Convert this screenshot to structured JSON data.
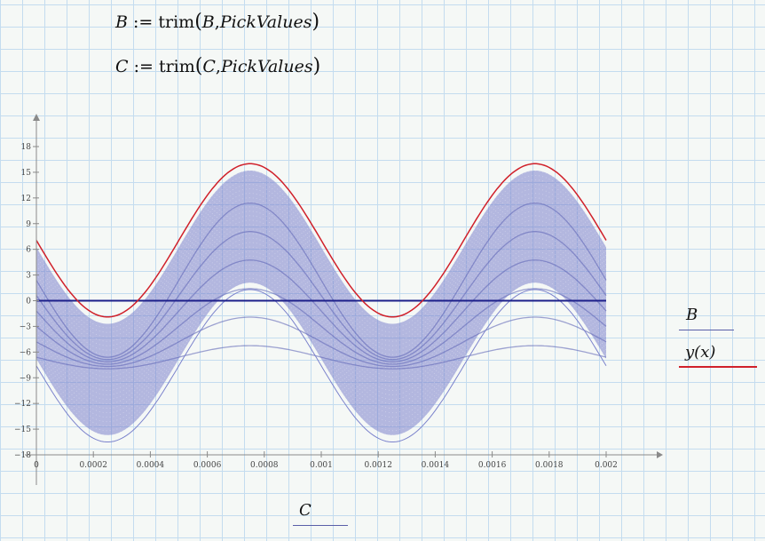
{
  "equations": [
    {
      "lhs": "B",
      "op": ":=",
      "func": "trim",
      "args": [
        "B",
        "PickValues"
      ]
    },
    {
      "lhs": "C",
      "op": ":=",
      "func": "trim",
      "args": [
        "C",
        "PickValues"
      ]
    }
  ],
  "legend": {
    "y_items": [
      {
        "label": "B",
        "color": "#5a5fa8"
      },
      {
        "label": "y(x)",
        "color": "#d0202a"
      }
    ],
    "x_label": "C",
    "x_label_color": "#5a5fa8"
  },
  "colors": {
    "axis": "#8a8a8a",
    "band": "#7b82cc",
    "zero_line": "#1c1f8a",
    "envelope": "#d0202a"
  },
  "chart_data": {
    "type": "line",
    "title": "",
    "xlabel": "C",
    "ylabel": "",
    "xlim": [
      0,
      0.002
    ],
    "ylim": [
      -18,
      18
    ],
    "grid": false,
    "legend_position": "right",
    "x_ticks": [
      "0",
      "0.0002",
      "0.0004",
      "0.0006",
      "0.0008",
      "0.001",
      "0.0012",
      "0.0014",
      "0.0016",
      "0.0018",
      "0.002"
    ],
    "y_ticks": [
      "-18",
      "-15",
      "-12",
      "-9",
      "-6",
      "-3",
      "0",
      "3",
      "6",
      "9",
      "12",
      "15",
      "18"
    ],
    "series": [
      {
        "name": "y(x)",
        "color": "#d0202a",
        "description": "sinusoid, period ~0.001, offset ~6.7, amplitude ~9",
        "x": [
          0,
          0.00025,
          0.0005,
          0.00075,
          0.001,
          0.00125,
          0.0015,
          0.00175,
          0.002
        ],
        "values": [
          7.2,
          -2.2,
          6.7,
          15.7,
          6.7,
          -2.2,
          6.7,
          15.7,
          5.2
        ]
      },
      {
        "name": "B",
        "color": "#7b82cc",
        "description": "dense family of scaled sinusoid traces filling band between y(x) envelope and its mirror; horizontal line at 0",
        "x": [
          0,
          0.00025,
          0.0005,
          0.00075,
          0.001,
          0.00125,
          0.0015,
          0.00175,
          0.002
        ],
        "upper": [
          6.5,
          -2.5,
          6.0,
          15.2,
          6.0,
          -2.5,
          6.0,
          15.2,
          4.8
        ],
        "lower": [
          -7.0,
          -15.8,
          -6.5,
          2.0,
          -6.5,
          -15.8,
          -6.5,
          2.0,
          -7.5
        ],
        "zero_line": 0
      }
    ]
  }
}
